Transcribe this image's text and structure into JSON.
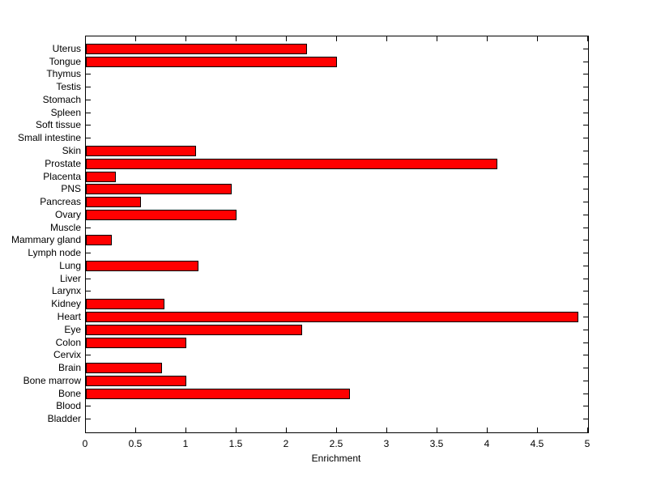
{
  "colors": {
    "bar_fill": "#ff0000",
    "bar_edge": "#000000",
    "axis": "#000000",
    "background": "#ffffff",
    "text": "#000000"
  },
  "chart_data": {
    "type": "bar",
    "orientation": "horizontal",
    "title": "",
    "xlabel": "Enrichment",
    "ylabel": "",
    "xlim": [
      0,
      5
    ],
    "xticks": [
      0,
      0.5,
      1,
      1.5,
      2,
      2.5,
      3,
      3.5,
      4,
      4.5,
      5
    ],
    "xtick_labels": [
      "0",
      "0.5",
      "1",
      "1.5",
      "2",
      "2.5",
      "3",
      "3.5",
      "4",
      "4.5",
      "5"
    ],
    "grid": false,
    "legend": null,
    "categories": [
      "Uterus",
      "Tongue",
      "Thymus",
      "Testis",
      "Stomach",
      "Spleen",
      "Soft tissue",
      "Small intestine",
      "Skin",
      "Prostate",
      "Placenta",
      "PNS",
      "Pancreas",
      "Ovary",
      "Muscle",
      "Mammary gland",
      "Lymph node",
      "Lung",
      "Liver",
      "Larynx",
      "Kidney",
      "Heart",
      "Eye",
      "Colon",
      "Cervix",
      "Brain",
      "Bone marrow",
      "Bone",
      "Blood",
      "Bladder"
    ],
    "values": [
      2.2,
      2.5,
      0,
      0,
      0,
      0,
      0,
      0,
      1.1,
      4.1,
      0.3,
      1.45,
      0.55,
      1.5,
      0,
      0.26,
      0,
      1.12,
      0,
      0,
      0.78,
      4.9,
      2.15,
      1.0,
      0,
      0.76,
      1.0,
      2.63,
      0,
      0
    ]
  }
}
